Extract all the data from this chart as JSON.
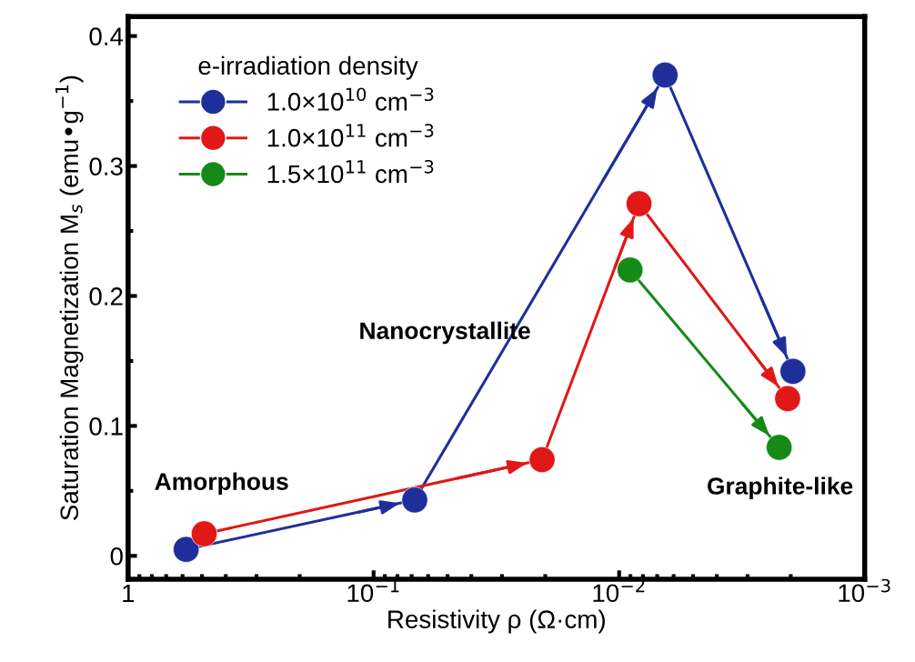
{
  "chart_data": {
    "type": "line",
    "xlabel": "Resistivity ρ (Ω·cm)",
    "ylabel": "Saturation Magnetization M$_{s}$ (emu•g$^{−1}$)",
    "legend_title": "e-irradiation density",
    "log": "x",
    "xlim": [
      1,
      0.001
    ],
    "xticks": [
      1,
      {
        "value": 0.1,
        "label": "10$^{−1}$"
      },
      {
        "value": 0.01,
        "label": "10$^{−2}$"
      },
      {
        "value": 0.001,
        "label": "10$^{−3}$"
      }
    ],
    "ylim": [
      -0.018,
      0.415
    ],
    "yticks": [
      0,
      0.1,
      0.2,
      0.3,
      0.4
    ],
    "marker": "circle",
    "legend": "top left",
    "grid": false,
    "annotations": [
      "Amorphous",
      "Nanocrystallite",
      "Graphite-like"
    ],
    "series": [
      {
        "name": "1.0×10$^{10}$ cm$^{−3}$",
        "color": "#1f2f9a",
        "x": [
          0.58,
          0.068,
          0.0065,
          0.00196
        ],
        "values": [
          0.005,
          0.043,
          0.37,
          0.142
        ]
      },
      {
        "name": "1.0×10$^{11}$ cm$^{−3}$",
        "color": "#e01818",
        "x": [
          0.49,
          0.0206,
          0.0083,
          0.00206
        ],
        "values": [
          0.017,
          0.074,
          0.271,
          0.121
        ]
      },
      {
        "name": "1.5×10$^{11}$ cm$^{−3}$",
        "color": "#168a16",
        "x": [
          0.00903,
          0.00223
        ],
        "values": [
          0.22,
          0.0835
        ]
      }
    ]
  }
}
